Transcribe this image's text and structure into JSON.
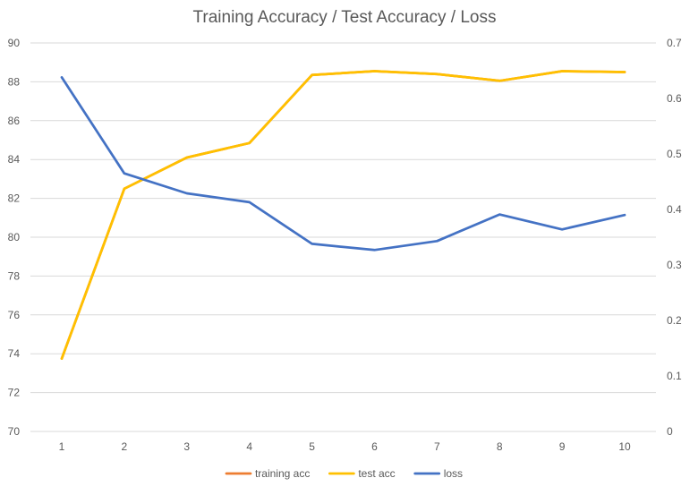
{
  "chart_data": {
    "type": "line",
    "title": "Training Accuracy  / Test Accuracy / Loss",
    "categories": [
      "1",
      "2",
      "3",
      "4",
      "5",
      "6",
      "7",
      "8",
      "9",
      "10"
    ],
    "series": [
      {
        "name": "training acc",
        "axis": "left",
        "color": "#ED7D31",
        "values": [
          73.75,
          82.5,
          84.1,
          84.85,
          88.35,
          88.55,
          88.4,
          88.05,
          88.55,
          88.5
        ]
      },
      {
        "name": "test acc",
        "axis": "left",
        "color": "#FFC000",
        "values": [
          73.75,
          82.5,
          84.1,
          84.85,
          88.35,
          88.55,
          88.4,
          88.05,
          88.55,
          88.5
        ]
      },
      {
        "name": "loss",
        "axis": "right",
        "color": "#4472C4",
        "values": [
          0.638,
          0.465,
          0.429,
          0.413,
          0.338,
          0.327,
          0.343,
          0.391,
          0.364,
          0.39
        ]
      }
    ],
    "y_left": {
      "ylim": [
        70,
        90
      ],
      "ticks": [
        "70",
        "72",
        "74",
        "76",
        "78",
        "80",
        "82",
        "84",
        "86",
        "88",
        "90"
      ]
    },
    "y_right": {
      "ylim": [
        0,
        0.7
      ],
      "ticks": [
        "0",
        "0.1",
        "0.2",
        "0.3",
        "0.4",
        "0.5",
        "0.6",
        "0.7"
      ]
    },
    "grid": true,
    "legend_position": "bottom"
  }
}
